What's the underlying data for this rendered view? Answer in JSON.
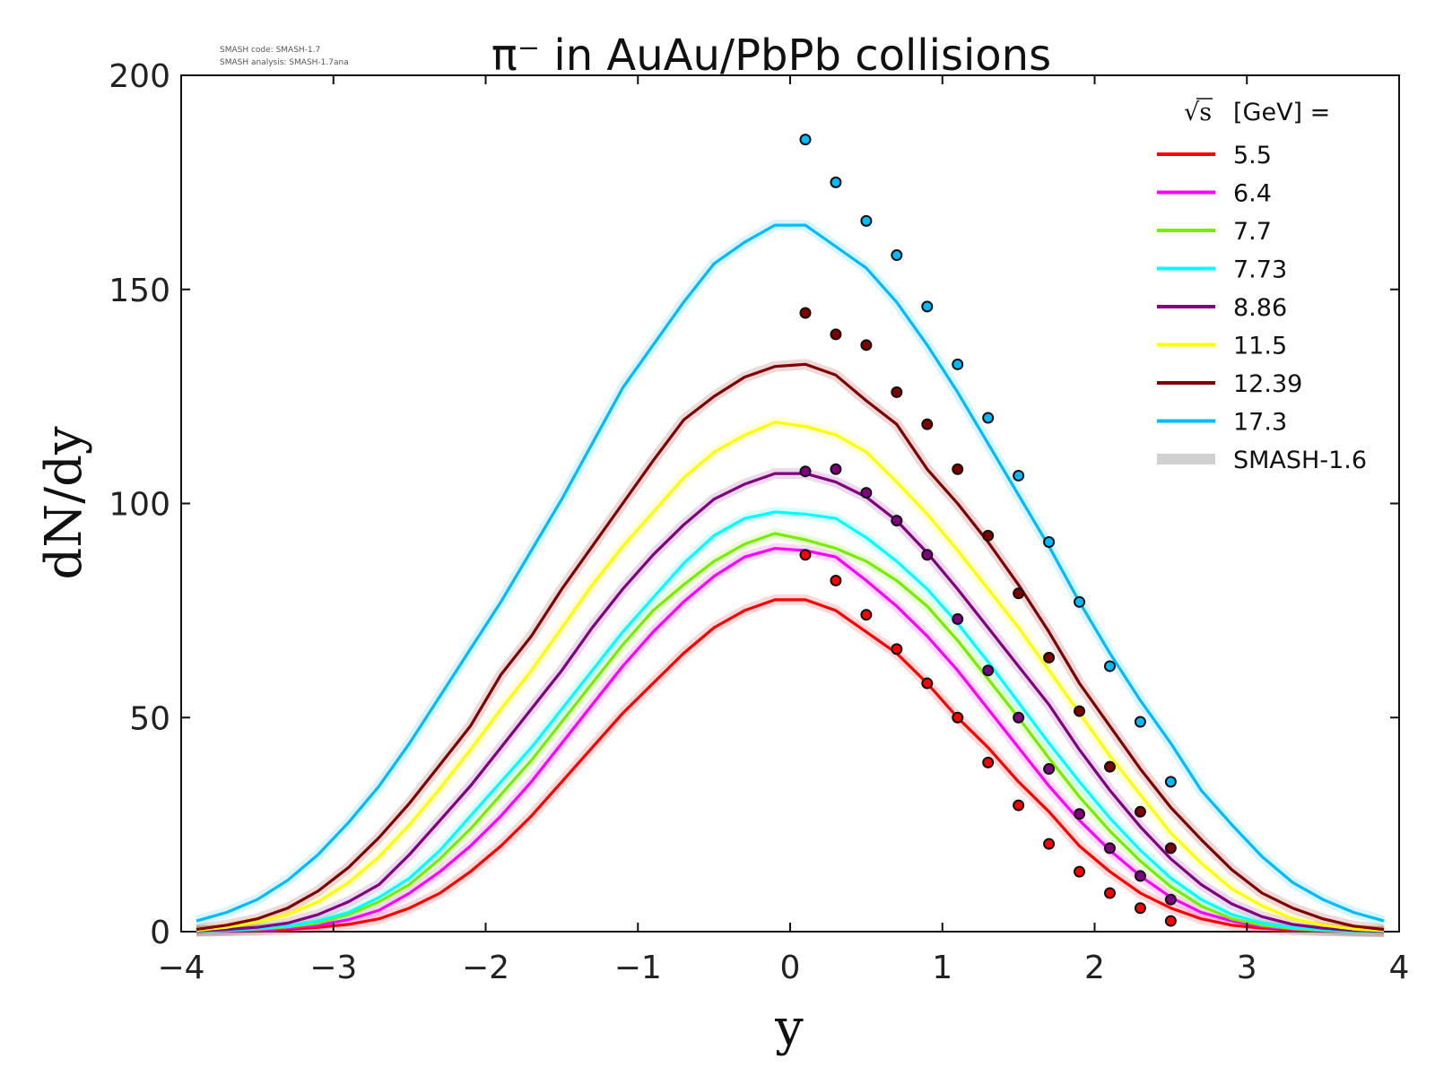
{
  "chart_data": {
    "type": "line",
    "title": "π⁻ in AuAu/PbPb collisions",
    "xlabel": "y",
    "ylabel": "dN/dy",
    "xlim": [
      -4,
      4
    ],
    "ylim": [
      0,
      200
    ],
    "xticks": [
      -4,
      -3,
      -2,
      -1,
      0,
      1,
      2,
      3,
      4
    ],
    "xtick_labels": [
      "−4",
      "−3",
      "−2",
      "−1",
      "0",
      "1",
      "2",
      "3",
      "4"
    ],
    "yticks": [
      0,
      50,
      100,
      150,
      200
    ],
    "ytick_labels": [
      "0",
      "50",
      "100",
      "150",
      "200"
    ],
    "legend": {
      "position": "top-right",
      "header_sqrt": "√s",
      "header_rest": "[GeV] =",
      "band_label": "SMASH-1.6",
      "band_color": "#d0d0d0"
    },
    "version_info": {
      "code": "SMASH code:      SMASH-1.7",
      "analysis": "SMASH analysis: SMASH-1.7ana"
    },
    "x": [
      -3.9,
      -3.7,
      -3.5,
      -3.3,
      -3.1,
      -2.9,
      -2.7,
      -2.5,
      -2.3,
      -2.1,
      -1.9,
      -1.7,
      -1.5,
      -1.3,
      -1.1,
      -0.9,
      -0.7,
      -0.5,
      -0.3,
      -0.1,
      0.1,
      0.3,
      0.5,
      0.7,
      0.9,
      1.1,
      1.3,
      1.5,
      1.7,
      1.9,
      2.1,
      2.3,
      2.5,
      2.7,
      2.9,
      3.1,
      3.3,
      3.5,
      3.7,
      3.9
    ],
    "series": [
      {
        "name": "5.5",
        "color": "#ff0000",
        "values": [
          0.1,
          0.2,
          0.3,
          0.5,
          1.0,
          1.7,
          3.0,
          5.5,
          9.0,
          14.0,
          20.0,
          27.0,
          35.0,
          43.0,
          51.0,
          58.0,
          65.0,
          71.0,
          75.0,
          77.5,
          77.5,
          75.0,
          70.0,
          65.0,
          58.0,
          50.0,
          43.0,
          35.0,
          28.0,
          20.0,
          14.0,
          9.0,
          5.5,
          3.0,
          1.5,
          0.8,
          0.4,
          0.2,
          0.1,
          0.0
        ],
        "data_x": [
          0.1,
          0.3,
          0.5,
          0.7,
          0.9,
          1.1,
          1.3,
          1.5,
          1.7,
          1.9,
          2.1,
          2.3,
          2.5
        ],
        "data_y": [
          88.0,
          82.0,
          74.0,
          66.0,
          58.0,
          50.0,
          39.5,
          29.5,
          20.5,
          14.0,
          9.0,
          5.5,
          2.5
        ]
      },
      {
        "name": "6.4",
        "color": "#ff00ff",
        "values": [
          0.1,
          0.2,
          0.4,
          0.8,
          1.5,
          2.8,
          5.0,
          9.0,
          14.0,
          20.0,
          27.0,
          35.0,
          44.0,
          53.0,
          62.0,
          70.0,
          77.0,
          83.0,
          87.5,
          89.5,
          89.0,
          87.5,
          82.0,
          76.0,
          69.0,
          61.0,
          52.0,
          43.0,
          34.0,
          26.0,
          19.0,
          13.0,
          8.0,
          4.5,
          2.5,
          1.2,
          0.6,
          0.3,
          0.1,
          0.0
        ]
      },
      {
        "name": "7.7",
        "color": "#77ee00",
        "values": [
          0.1,
          0.3,
          0.6,
          1.1,
          2.0,
          4.0,
          7.0,
          11.0,
          17.0,
          24.0,
          32.0,
          40.0,
          49.0,
          58.0,
          67.0,
          75.0,
          81.0,
          86.5,
          90.5,
          93.0,
          91.5,
          89.5,
          86.5,
          82.0,
          76.0,
          68.0,
          59.0,
          50.0,
          40.5,
          31.5,
          23.5,
          16.5,
          10.5,
          6.0,
          3.0,
          1.5,
          0.7,
          0.3,
          0.1,
          0.0
        ]
      },
      {
        "name": "7.73",
        "color": "#00ffff",
        "values": [
          0.1,
          0.3,
          0.7,
          1.3,
          2.5,
          4.5,
          8.0,
          12.5,
          19.0,
          27.0,
          35.0,
          43.0,
          52.0,
          61.0,
          70.0,
          78.0,
          86.0,
          92.5,
          96.5,
          98.0,
          97.5,
          96.5,
          92.0,
          86.5,
          80.0,
          72.0,
          63.0,
          53.5,
          44.0,
          35.0,
          26.5,
          19.0,
          12.5,
          7.5,
          4.0,
          2.0,
          0.9,
          0.4,
          0.1,
          0.0
        ]
      },
      {
        "name": "8.86",
        "color": "#800080",
        "values": [
          0.2,
          0.5,
          1.0,
          2.0,
          4.0,
          7.0,
          11.0,
          18.0,
          26.0,
          34.0,
          43.0,
          52.0,
          61.0,
          71.0,
          80.0,
          88.0,
          95.0,
          101.0,
          104.5,
          107.0,
          107.0,
          105.0,
          101.5,
          96.0,
          88.5,
          80.0,
          71.0,
          62.0,
          53.0,
          42.5,
          33.0,
          24.5,
          17.0,
          11.0,
          6.5,
          3.5,
          1.7,
          0.8,
          0.3,
          0.1
        ]
      },
      {
        "name": "11.5",
        "color": "#ffff00",
        "values": [
          0.3,
          1.0,
          2.2,
          4.0,
          7.0,
          11.5,
          17.5,
          25.0,
          33.5,
          42.5,
          52.0,
          61.0,
          71.0,
          81.0,
          90.0,
          98.0,
          106.0,
          112.0,
          116.0,
          119.0,
          118.0,
          116.0,
          112.0,
          105.0,
          97.5,
          89.0,
          80.0,
          71.0,
          61.0,
          51.0,
          41.0,
          32.0,
          23.0,
          16.0,
          10.0,
          6.0,
          3.0,
          1.5,
          0.6,
          0.2
        ]
      },
      {
        "name": "12.39",
        "color": "#800000",
        "values": [
          0.5,
          1.5,
          3.0,
          5.5,
          9.5,
          15.0,
          22.0,
          30.0,
          39.0,
          48.0,
          60.0,
          69.0,
          80.0,
          90.0,
          100.0,
          110.0,
          119.5,
          125.0,
          129.5,
          132.0,
          132.5,
          130.0,
          124.0,
          118.5,
          108.0,
          100.0,
          91.0,
          81.0,
          70.0,
          58.0,
          48.0,
          38.0,
          29.0,
          21.5,
          14.5,
          9.0,
          5.5,
          3.0,
          1.3,
          0.5
        ],
        "data_x": [
          0.1,
          0.3,
          0.5,
          0.7,
          0.9,
          1.1,
          1.3,
          1.5,
          1.7,
          1.9,
          2.1,
          2.3,
          2.5
        ],
        "data_y": [
          144.5,
          139.5,
          137.0,
          126.0,
          118.5,
          108.0,
          92.5,
          79.0,
          64.0,
          51.5,
          38.5,
          28.0,
          19.5
        ]
      },
      {
        "name": "17.3",
        "color": "#00bbff",
        "values": [
          2.5,
          4.5,
          7.5,
          12.0,
          18.0,
          25.5,
          34.0,
          44.0,
          55.0,
          66.0,
          77.0,
          89.0,
          101.0,
          114.0,
          127.0,
          137.0,
          147.0,
          156.0,
          161.0,
          165.0,
          165.0,
          160.0,
          155.0,
          147.0,
          137.0,
          126.0,
          114.0,
          102.0,
          90.0,
          77.0,
          65.0,
          54.0,
          44.0,
          33.0,
          25.0,
          17.5,
          11.5,
          7.5,
          4.5,
          2.5
        ],
        "data_x": [
          0.1,
          0.3,
          0.5,
          0.7,
          0.9,
          1.1,
          1.3,
          1.5,
          1.7,
          1.9,
          2.1,
          2.3,
          2.5
        ],
        "data_y": [
          185.0,
          175.0,
          166.0,
          158.0,
          146.0,
          132.5,
          120.0,
          106.5,
          91.0,
          77.0,
          62.0,
          49.0,
          35.0
        ]
      }
    ],
    "extra_points": [
      {
        "color": "#800080",
        "x": [
          0.1,
          0.3,
          0.5,
          0.7,
          0.9,
          1.1,
          1.3,
          1.5,
          1.7,
          1.9,
          2.1,
          2.3,
          2.5
        ],
        "y": [
          107.5,
          108.0,
          102.5,
          96.0,
          88.0,
          73.0,
          61.0,
          50.0,
          38.0,
          27.5,
          19.5,
          13.0,
          7.5
        ]
      }
    ]
  }
}
